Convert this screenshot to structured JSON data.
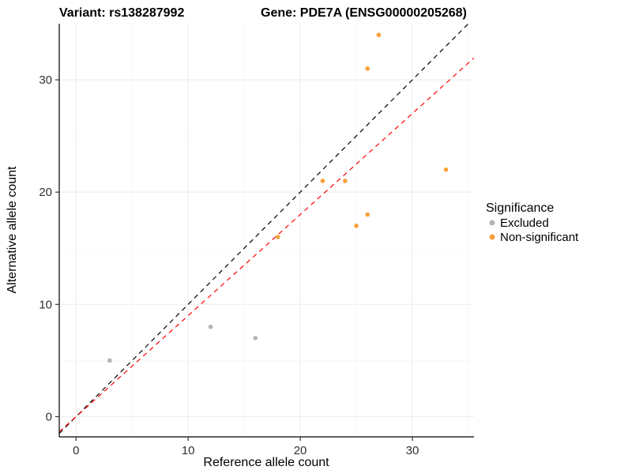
{
  "chart_data": {
    "type": "scatter",
    "titles": {
      "left": "Variant: rs138287992",
      "right": "Gene: PDE7A (ENSG00000205268)"
    },
    "xlabel": "Reference allele count",
    "ylabel": "Alternative allele count",
    "axes": {
      "xlim": [
        -1.5,
        35.5
      ],
      "ylim": [
        -1.8,
        35.0
      ],
      "x_ticks": [
        0,
        10,
        20,
        30
      ],
      "y_ticks": [
        0,
        10,
        20,
        30
      ],
      "x_minor": [
        5,
        15,
        25,
        35
      ],
      "y_minor": [
        5,
        15,
        25,
        35
      ],
      "grid": true
    },
    "legend": {
      "title": "Significance",
      "position": "right",
      "items": [
        {
          "label": "Excluded",
          "color": "#b4b4b4"
        },
        {
          "label": "Non-significant",
          "color": "#f8a13a"
        }
      ]
    },
    "series": [
      {
        "name": "Excluded",
        "color": "#b4b4b4",
        "points": [
          [
            3,
            5
          ],
          [
            12,
            8
          ],
          [
            16,
            7
          ]
        ]
      },
      {
        "name": "Non-significant",
        "color": "#f8a13a",
        "points": [
          [
            18,
            16
          ],
          [
            22,
            21
          ],
          [
            24,
            21
          ],
          [
            25,
            17
          ],
          [
            26,
            18
          ],
          [
            26,
            31
          ],
          [
            27,
            34
          ],
          [
            33,
            22
          ]
        ]
      }
    ],
    "lines": [
      {
        "name": "identity",
        "color": "#000000",
        "style": "dashed",
        "slope": 1.0,
        "intercept": 0
      },
      {
        "name": "expected-ratio",
        "color": "#ff0000",
        "style": "dashed",
        "slope": 0.9,
        "intercept": 0
      }
    ],
    "style": {
      "grid_major": "#ebebeb",
      "grid_minor": "#f6f6f6",
      "background": "#ffffff",
      "axis_color": "#000000",
      "tick_color": "#333333"
    }
  }
}
